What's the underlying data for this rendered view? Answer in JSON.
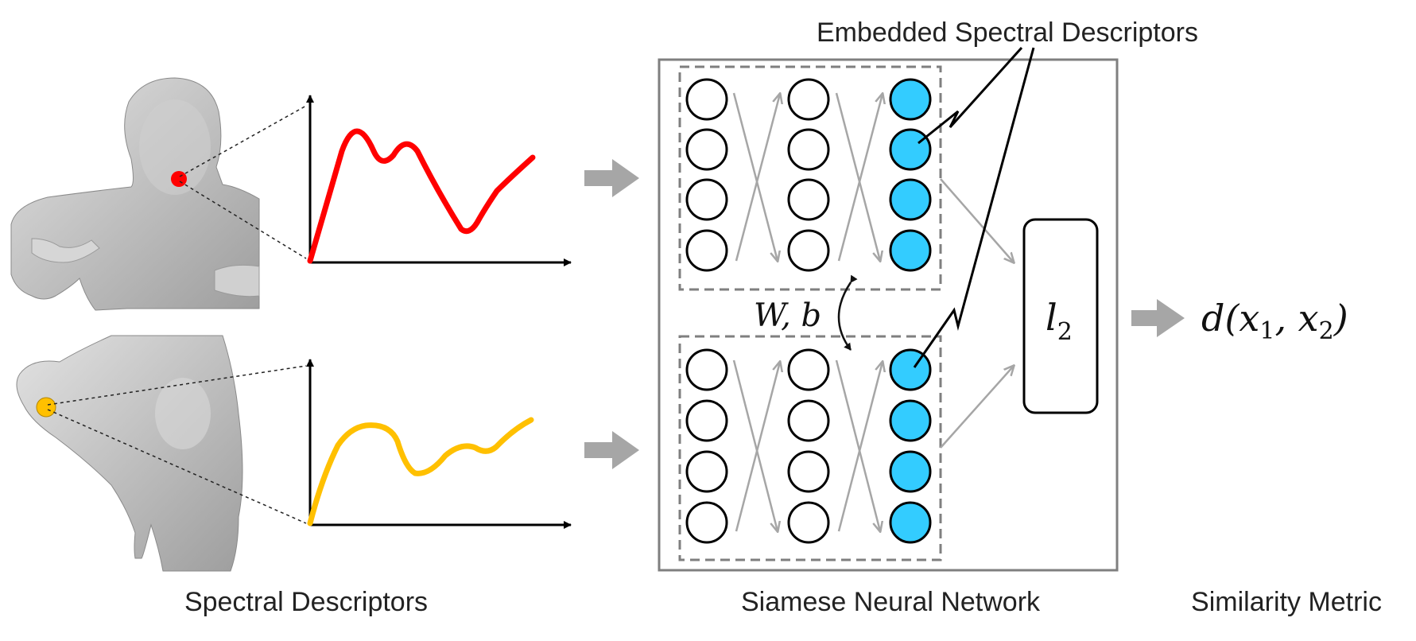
{
  "labels": {
    "embedded": "Embedded Spectral Descriptors",
    "spectral": "Spectral Descriptors",
    "siamese": "Siamese Neural Network",
    "similarity": "Similarity Metric",
    "weights": "W, b",
    "norm": "l",
    "norm_sub": "2",
    "metric_prefix": "d(x",
    "metric_sub1": "1",
    "metric_mid": ", x",
    "metric_sub2": "2",
    "metric_suffix": ")"
  },
  "colors": {
    "curve_top": "#ff0000",
    "curve_bottom": "#ffc000",
    "point_top": "#ff0000",
    "point_bottom": "#ffc000",
    "embedded_node": "#33ccff",
    "arrow_gray": "#a6a6a6",
    "mesh": "#c8c8c8"
  },
  "network": {
    "columns": 3,
    "nodes_per_column": 4,
    "embedded_column": 3
  }
}
